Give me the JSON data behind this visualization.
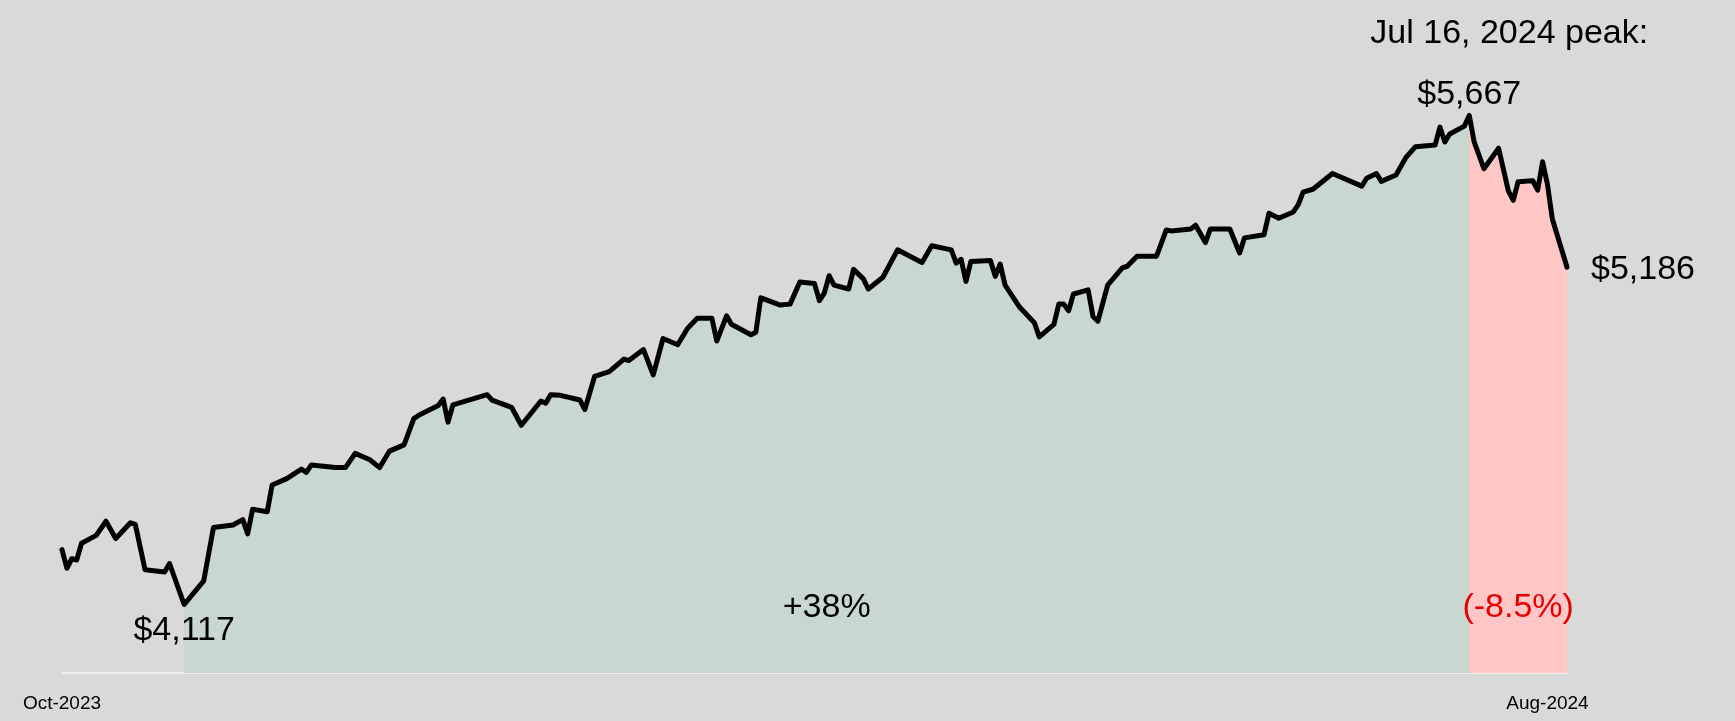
{
  "chart_data": {
    "type": "line",
    "x": [
      "2023-10-02",
      "2023-10-03",
      "2023-10-04",
      "2023-10-05",
      "2023-10-06",
      "2023-10-09",
      "2023-10-11",
      "2023-10-13",
      "2023-10-16",
      "2023-10-17",
      "2023-10-19",
      "2023-10-23",
      "2023-10-24",
      "2023-10-27",
      "2023-10-31",
      "2023-11-02",
      "2023-11-06",
      "2023-11-08",
      "2023-11-09",
      "2023-11-10",
      "2023-11-13",
      "2023-11-14",
      "2023-11-17",
      "2023-11-20",
      "2023-11-21",
      "2023-11-22",
      "2023-11-27",
      "2023-11-29",
      "2023-12-01",
      "2023-12-04",
      "2023-12-06",
      "2023-12-08",
      "2023-12-11",
      "2023-12-13",
      "2023-12-14",
      "2023-12-18",
      "2023-12-19",
      "2023-12-20",
      "2023-12-21",
      "2023-12-28",
      "2023-12-29",
      "2024-01-02",
      "2024-01-04",
      "2024-01-08",
      "2024-01-09",
      "2024-01-10",
      "2024-01-12",
      "2024-01-16",
      "2024-01-17",
      "2024-01-19",
      "2024-01-22",
      "2024-01-25",
      "2024-01-26",
      "2024-01-29",
      "2024-01-31",
      "2024-02-02",
      "2024-02-05",
      "2024-02-07",
      "2024-02-09",
      "2024-02-12",
      "2024-02-13",
      "2024-02-15",
      "2024-02-16",
      "2024-02-20",
      "2024-02-21",
      "2024-02-22",
      "2024-02-26",
      "2024-02-28",
      "2024-03-01",
      "2024-03-04",
      "2024-03-05",
      "2024-03-06",
      "2024-03-07",
      "2024-03-08",
      "2024-03-11",
      "2024-03-12",
      "2024-03-14",
      "2024-03-15",
      "2024-03-18",
      "2024-03-21",
      "2024-03-26",
      "2024-03-28",
      "2024-04-01",
      "2024-04-02",
      "2024-04-03",
      "2024-04-04",
      "2024-04-05",
      "2024-04-09",
      "2024-04-10",
      "2024-04-11",
      "2024-04-12",
      "2024-04-15",
      "2024-04-18",
      "2024-04-19",
      "2024-04-22",
      "2024-04-23",
      "2024-04-24",
      "2024-04-25",
      "2024-04-26",
      "2024-04-29",
      "2024-04-30",
      "2024-05-01",
      "2024-05-03",
      "2024-05-06",
      "2024-05-07",
      "2024-05-09",
      "2024-05-13",
      "2024-05-15",
      "2024-05-16",
      "2024-05-20",
      "2024-05-21",
      "2024-05-23",
      "2024-05-24",
      "2024-05-28",
      "2024-05-30",
      "2024-05-31",
      "2024-06-04",
      "2024-06-05",
      "2024-06-07",
      "2024-06-10",
      "2024-06-11",
      "2024-06-12",
      "2024-06-14",
      "2024-06-18",
      "2024-06-24",
      "2024-06-25",
      "2024-06-27",
      "2024-06-28",
      "2024-07-01",
      "2024-07-03",
      "2024-07-05",
      "2024-07-09",
      "2024-07-10",
      "2024-07-11",
      "2024-07-12",
      "2024-07-15",
      "2024-07-16",
      "2024-07-17",
      "2024-07-19",
      "2024-07-22",
      "2024-07-24",
      "2024-07-25",
      "2024-07-26",
      "2024-07-29",
      "2024-07-30",
      "2024-07-31",
      "2024-08-01",
      "2024-08-02",
      "2024-08-05"
    ],
    "series": [
      {
        "type": "area",
        "color": "#c8d8d0",
        "x": [
          "2023-10-27",
          "2023-10-31",
          "2023-11-02",
          "2023-11-06",
          "2023-11-08",
          "2023-11-09",
          "2023-11-10",
          "2023-11-13",
          "2023-11-14",
          "2023-11-17",
          "2023-11-20",
          "2023-11-21",
          "2023-11-22",
          "2023-11-27",
          "2023-11-29",
          "2023-12-01",
          "2023-12-04",
          "2023-12-06",
          "2023-12-08",
          "2023-12-11",
          "2023-12-13",
          "2023-12-14",
          "2023-12-18",
          "2023-12-19",
          "2023-12-20",
          "2023-12-21",
          "2023-12-28",
          "2023-12-29",
          "2024-01-02",
          "2024-01-04",
          "2024-01-08",
          "2024-01-09",
          "2024-01-10",
          "2024-01-12",
          "2024-01-16",
          "2024-01-17",
          "2024-01-19",
          "2024-01-22",
          "2024-01-25",
          "2024-01-26",
          "2024-01-29",
          "2024-01-31",
          "2024-02-02",
          "2024-02-05",
          "2024-02-07",
          "2024-02-09",
          "2024-02-12",
          "2024-02-13",
          "2024-02-15",
          "2024-02-16",
          "2024-02-20",
          "2024-02-21",
          "2024-02-22",
          "2024-02-26",
          "2024-02-28",
          "2024-03-01",
          "2024-03-04",
          "2024-03-05",
          "2024-03-06",
          "2024-03-07",
          "2024-03-08",
          "2024-03-11",
          "2024-03-12",
          "2024-03-14",
          "2024-03-15",
          "2024-03-18",
          "2024-03-21",
          "2024-03-26",
          "2024-03-28",
          "2024-04-01",
          "2024-04-02",
          "2024-04-03",
          "2024-04-04",
          "2024-04-05",
          "2024-04-09",
          "2024-04-10",
          "2024-04-11",
          "2024-04-12",
          "2024-04-15",
          "2024-04-18",
          "2024-04-19",
          "2024-04-22",
          "2024-04-23",
          "2024-04-24",
          "2024-04-25",
          "2024-04-26",
          "2024-04-29",
          "2024-04-30",
          "2024-05-01",
          "2024-05-03",
          "2024-05-06",
          "2024-05-07",
          "2024-05-09",
          "2024-05-13",
          "2024-05-15",
          "2024-05-16",
          "2024-05-20",
          "2024-05-21",
          "2024-05-23",
          "2024-05-24",
          "2024-05-28",
          "2024-05-30",
          "2024-05-31",
          "2024-06-04",
          "2024-06-05",
          "2024-06-07",
          "2024-06-10",
          "2024-06-11",
          "2024-06-12",
          "2024-06-14",
          "2024-06-18",
          "2024-06-24",
          "2024-06-25",
          "2024-06-27",
          "2024-06-28",
          "2024-07-01",
          "2024-07-03",
          "2024-07-05",
          "2024-07-09",
          "2024-07-10",
          "2024-07-11",
          "2024-07-12",
          "2024-07-15",
          "2024-07-16"
        ],
        "values": [
          4117,
          4192,
          4361,
          4369,
          4386,
          4341,
          4419,
          4411,
          4496,
          4516,
          4546,
          4536,
          4559,
          4551,
          4551,
          4596,
          4576,
          4551,
          4603,
          4623,
          4706,
          4717,
          4748,
          4768,
          4695,
          4750,
          4782,
          4765,
          4742,
          4685,
          4762,
          4755,
          4782,
          4780,
          4765,
          4735,
          4840,
          4855,
          4895,
          4890,
          4925,
          4845,
          4960,
          4940,
          4992,
          5024,
          5024,
          4952,
          5032,
          5005,
          4972,
          4980,
          5089,
          5066,
          5069,
          5139,
          5134,
          5080,
          5104,
          5159,
          5129,
          5117,
          5179,
          5149,
          5117,
          5154,
          5241,
          5201,
          5254,
          5241,
          5199,
          5211,
          5141,
          5204,
          5207,
          5157,
          5196,
          5129,
          5059,
          5010,
          4965,
          5005,
          5069,
          5069,
          5048,
          5101,
          5114,
          5030,
          5015,
          5129,
          5184,
          5189,
          5221,
          5221,
          5304,
          5301,
          5307,
          5319,
          5264,
          5307,
          5307,
          5231,
          5279,
          5289,
          5357,
          5341,
          5361,
          5384,
          5424,
          5433,
          5483,
          5443,
          5468,
          5483,
          5458,
          5478,
          5533,
          5568,
          5573,
          5630,
          5583,
          5608,
          5633,
          5667
        ]
      },
      {
        "type": "area",
        "color": "#ffc6c6",
        "x": [
          "2024-07-16",
          "2024-07-17",
          "2024-07-19",
          "2024-07-22",
          "2024-07-24",
          "2024-07-25",
          "2024-07-26",
          "2024-07-29",
          "2024-07-30",
          "2024-07-31",
          "2024-08-01",
          "2024-08-02",
          "2024-08-05"
        ],
        "values": [
          5667,
          5583,
          5498,
          5563,
          5428,
          5398,
          5457,
          5460,
          5430,
          5520,
          5448,
          5339,
          5186
        ]
      },
      {
        "color": "#000000",
        "values": [
          4291,
          4232,
          4262,
          4258,
          4311,
          4336,
          4381,
          4326,
          4376,
          4371,
          4227,
          4220,
          4247,
          4117,
          4192,
          4361,
          4369,
          4386,
          4341,
          4419,
          4411,
          4496,
          4516,
          4546,
          4536,
          4559,
          4551,
          4551,
          4596,
          4576,
          4551,
          4603,
          4623,
          4706,
          4717,
          4748,
          4768,
          4695,
          4750,
          4782,
          4765,
          4742,
          4685,
          4762,
          4755,
          4782,
          4780,
          4765,
          4735,
          4840,
          4855,
          4895,
          4890,
          4925,
          4845,
          4960,
          4940,
          4992,
          5024,
          5024,
          4952,
          5032,
          5005,
          4972,
          4980,
          5089,
          5066,
          5069,
          5139,
          5134,
          5080,
          5104,
          5159,
          5129,
          5117,
          5179,
          5149,
          5117,
          5154,
          5241,
          5201,
          5254,
          5241,
          5199,
          5211,
          5141,
          5204,
          5207,
          5157,
          5196,
          5129,
          5059,
          5010,
          4965,
          5005,
          5069,
          5069,
          5048,
          5101,
          5114,
          5030,
          5015,
          5129,
          5184,
          5189,
          5221,
          5221,
          5304,
          5301,
          5307,
          5319,
          5264,
          5307,
          5307,
          5231,
          5279,
          5289,
          5357,
          5341,
          5361,
          5384,
          5424,
          5433,
          5483,
          5443,
          5468,
          5483,
          5458,
          5478,
          5533,
          5568,
          5573,
          5630,
          5583,
          5608,
          5633,
          5667,
          5583,
          5498,
          5563,
          5428,
          5398,
          5457,
          5460,
          5430,
          5520,
          5448,
          5339,
          5186
        ],
        "value_labels": [
          null,
          null,
          null,
          null,
          null,
          null,
          null,
          null,
          null,
          null,
          null,
          null,
          null,
          "$4,117",
          null,
          null,
          null,
          null,
          null,
          null,
          null,
          null,
          null,
          null,
          null,
          null,
          null,
          null,
          null,
          null,
          null,
          null,
          null,
          null,
          null,
          null,
          null,
          null,
          null,
          null,
          null,
          null,
          null,
          null,
          null,
          null,
          null,
          null,
          null,
          null,
          null,
          null,
          null,
          null,
          null,
          null,
          null,
          null,
          null,
          null,
          null,
          null,
          null,
          null,
          null,
          null,
          null,
          null,
          null,
          null,
          null,
          null,
          null,
          null,
          null,
          null,
          null,
          null,
          null,
          null,
          null,
          null,
          null,
          null,
          null,
          null,
          null,
          null,
          null,
          null,
          null,
          null,
          null,
          null,
          null,
          null,
          null,
          null,
          null,
          null,
          null,
          null,
          null,
          null,
          null,
          null,
          null,
          null,
          null,
          null,
          null,
          null,
          null,
          null,
          null,
          null,
          null,
          null,
          null,
          null,
          null,
          null,
          null,
          null,
          null,
          null,
          null,
          null,
          null,
          null,
          null,
          null,
          null,
          null,
          null,
          null,
          "$5,667",
          null,
          null,
          null,
          null,
          null,
          null,
          null,
          null,
          null,
          null,
          null,
          "$5,186"
        ]
      }
    ],
    "xlim": [
      "2023-10-02",
      "2024-08-05"
    ],
    "xticks": [
      {
        "value": "2023-10-02",
        "label": "Oct-2023"
      },
      {
        "value": "2024-08-01",
        "label": "Aug-2024"
      }
    ],
    "tick_labels": "x",
    "marker": "none",
    "line_style": "solid",
    "annotations": [
      {
        "text": "Jul 16, 2024 peak:",
        "x": "2024-07-16",
        "y": 5667
      },
      "+38%",
      "(-8.5%)"
    ]
  }
}
